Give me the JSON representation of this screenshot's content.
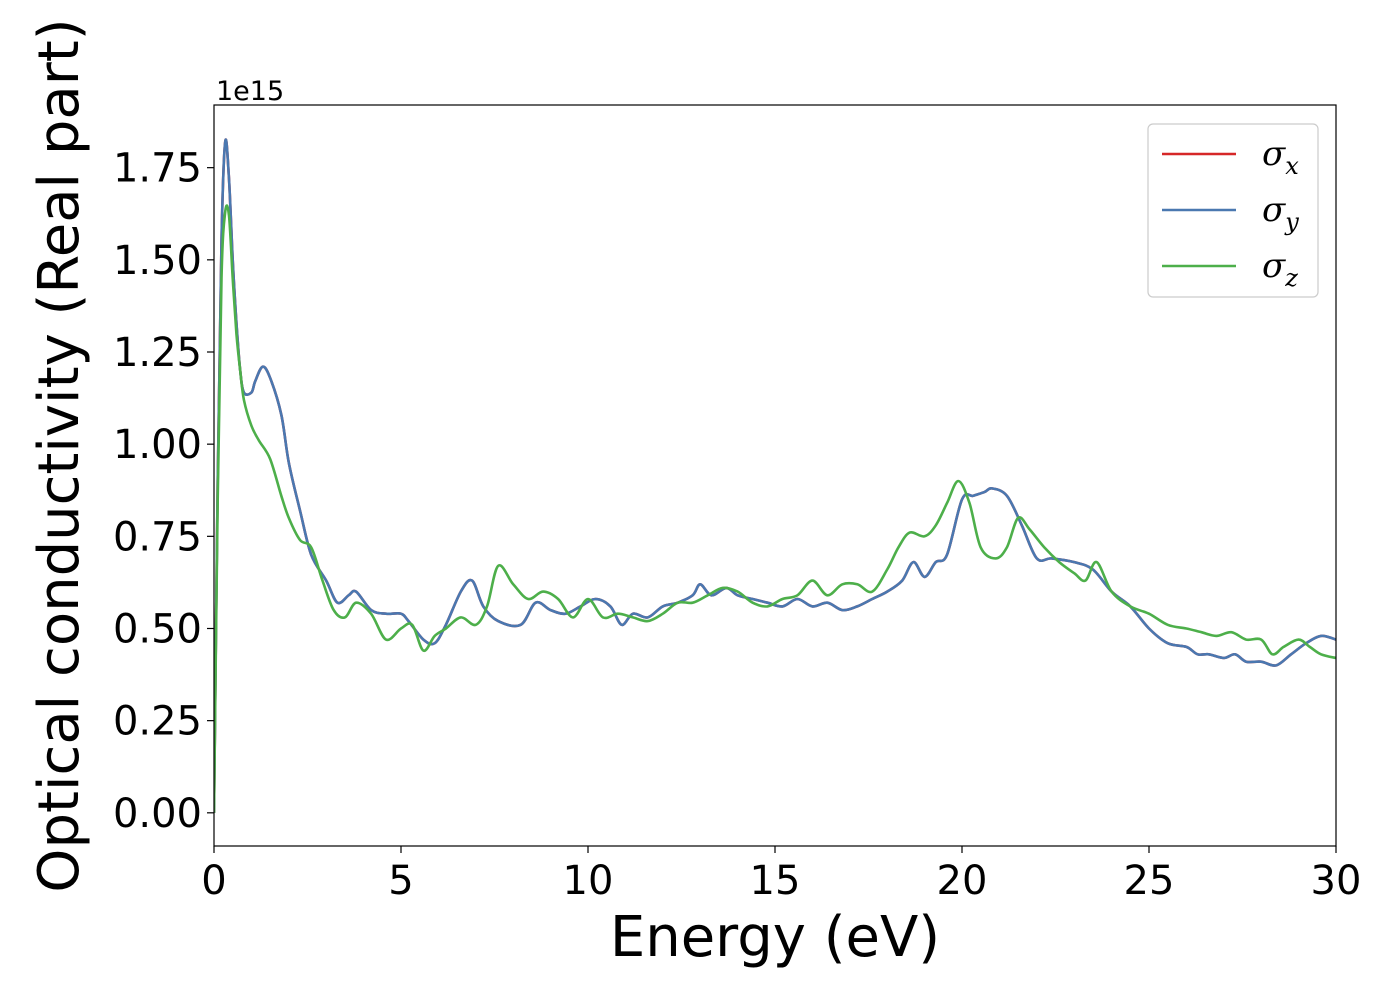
{
  "chart_data": {
    "type": "line",
    "xlabel": "Energy (eV)",
    "ylabel": "Optical conductivity (Real part)",
    "y_offset_label": "1e15",
    "y_scale_factor": 1000000000000000.0,
    "xlim": [
      0,
      30
    ],
    "ylim": [
      -0.09,
      1.92
    ],
    "x_ticks": [
      0,
      5,
      10,
      15,
      20,
      25,
      30
    ],
    "x_tick_labels": [
      "0",
      "5",
      "10",
      "15",
      "20",
      "25",
      "30"
    ],
    "y_ticks": [
      0.0,
      0.25,
      0.5,
      0.75,
      1.0,
      1.25,
      1.5,
      1.75
    ],
    "y_tick_labels": [
      "0.00",
      "0.25",
      "0.50",
      "0.75",
      "1.00",
      "1.25",
      "1.50",
      "1.75"
    ],
    "grid": false,
    "legend_position": "top-right",
    "series": [
      {
        "name": "σx",
        "symbol": "σ",
        "subscript": "x",
        "color": "#d62728",
        "x": [
          0,
          0.1,
          0.2,
          0.3,
          0.4,
          0.5,
          0.6,
          0.7,
          0.8,
          1.0,
          1.1,
          1.3,
          1.5,
          1.8,
          2.0,
          2.3,
          2.6,
          3.0,
          3.3,
          3.6,
          3.8,
          4.2,
          4.6,
          5.0,
          5.2,
          5.6,
          5.9,
          6.2,
          6.6,
          6.9,
          7.2,
          7.6,
          8.2,
          8.6,
          9.0,
          9.4,
          9.8,
          10.2,
          10.6,
          10.9,
          11.2,
          11.6,
          12.0,
          12.4,
          12.8,
          13.0,
          13.3,
          13.7,
          14.0,
          14.4,
          14.8,
          15.2,
          15.6,
          16.0,
          16.4,
          16.8,
          17.2,
          17.6,
          18.0,
          18.4,
          18.7,
          19.0,
          19.3,
          19.6,
          20.0,
          20.3,
          20.6,
          20.8,
          21.2,
          21.6,
          22.0,
          22.4,
          23.0,
          23.5,
          24.0,
          24.5,
          25.0,
          25.5,
          26.0,
          26.3,
          26.6,
          27.0,
          27.3,
          27.6,
          28.0,
          28.4,
          28.8,
          29.2,
          29.6,
          30.0
        ],
        "y": [
          0.0,
          0.9,
          1.55,
          1.82,
          1.72,
          1.5,
          1.33,
          1.2,
          1.14,
          1.14,
          1.17,
          1.21,
          1.18,
          1.08,
          0.95,
          0.82,
          0.7,
          0.63,
          0.57,
          0.59,
          0.6,
          0.55,
          0.54,
          0.54,
          0.52,
          0.47,
          0.46,
          0.51,
          0.6,
          0.63,
          0.56,
          0.52,
          0.51,
          0.57,
          0.55,
          0.54,
          0.56,
          0.58,
          0.56,
          0.51,
          0.54,
          0.53,
          0.56,
          0.57,
          0.59,
          0.62,
          0.59,
          0.61,
          0.59,
          0.58,
          0.57,
          0.56,
          0.58,
          0.56,
          0.57,
          0.55,
          0.56,
          0.58,
          0.6,
          0.63,
          0.68,
          0.64,
          0.68,
          0.7,
          0.85,
          0.86,
          0.87,
          0.88,
          0.86,
          0.78,
          0.69,
          0.69,
          0.68,
          0.66,
          0.6,
          0.56,
          0.5,
          0.46,
          0.45,
          0.43,
          0.43,
          0.42,
          0.43,
          0.41,
          0.41,
          0.4,
          0.43,
          0.46,
          0.48,
          0.47
        ]
      },
      {
        "name": "σy",
        "symbol": "σ",
        "subscript": "y",
        "color": "#4a78b0",
        "x": [
          0,
          0.1,
          0.2,
          0.3,
          0.4,
          0.5,
          0.6,
          0.7,
          0.8,
          1.0,
          1.1,
          1.3,
          1.5,
          1.8,
          2.0,
          2.3,
          2.6,
          3.0,
          3.3,
          3.6,
          3.8,
          4.2,
          4.6,
          5.0,
          5.2,
          5.6,
          5.9,
          6.2,
          6.6,
          6.9,
          7.2,
          7.6,
          8.2,
          8.6,
          9.0,
          9.4,
          9.8,
          10.2,
          10.6,
          10.9,
          11.2,
          11.6,
          12.0,
          12.4,
          12.8,
          13.0,
          13.3,
          13.7,
          14.0,
          14.4,
          14.8,
          15.2,
          15.6,
          16.0,
          16.4,
          16.8,
          17.2,
          17.6,
          18.0,
          18.4,
          18.7,
          19.0,
          19.3,
          19.6,
          20.0,
          20.3,
          20.6,
          20.8,
          21.2,
          21.6,
          22.0,
          22.4,
          23.0,
          23.5,
          24.0,
          24.5,
          25.0,
          25.5,
          26.0,
          26.3,
          26.6,
          27.0,
          27.3,
          27.6,
          28.0,
          28.4,
          28.8,
          29.2,
          29.6,
          30.0
        ],
        "y": [
          0.0,
          0.9,
          1.55,
          1.82,
          1.72,
          1.5,
          1.33,
          1.2,
          1.14,
          1.14,
          1.17,
          1.21,
          1.18,
          1.08,
          0.95,
          0.82,
          0.7,
          0.63,
          0.57,
          0.59,
          0.6,
          0.55,
          0.54,
          0.54,
          0.52,
          0.47,
          0.46,
          0.51,
          0.6,
          0.63,
          0.56,
          0.52,
          0.51,
          0.57,
          0.55,
          0.54,
          0.56,
          0.58,
          0.56,
          0.51,
          0.54,
          0.53,
          0.56,
          0.57,
          0.59,
          0.62,
          0.59,
          0.61,
          0.59,
          0.58,
          0.57,
          0.56,
          0.58,
          0.56,
          0.57,
          0.55,
          0.56,
          0.58,
          0.6,
          0.63,
          0.68,
          0.64,
          0.68,
          0.7,
          0.85,
          0.86,
          0.87,
          0.88,
          0.86,
          0.78,
          0.69,
          0.69,
          0.68,
          0.66,
          0.6,
          0.56,
          0.5,
          0.46,
          0.45,
          0.43,
          0.43,
          0.42,
          0.43,
          0.41,
          0.41,
          0.4,
          0.43,
          0.46,
          0.48,
          0.47
        ]
      },
      {
        "name": "σz",
        "symbol": "σ",
        "subscript": "z",
        "color": "#4daf4a",
        "x": [
          0,
          0.1,
          0.2,
          0.3,
          0.4,
          0.5,
          0.6,
          0.7,
          0.8,
          1.0,
          1.2,
          1.5,
          1.8,
          2.0,
          2.3,
          2.6,
          2.9,
          3.2,
          3.5,
          3.8,
          4.2,
          4.6,
          5.0,
          5.3,
          5.6,
          5.9,
          6.2,
          6.6,
          7.0,
          7.3,
          7.6,
          8.0,
          8.4,
          8.8,
          9.2,
          9.6,
          10.0,
          10.4,
          10.8,
          11.2,
          11.6,
          12.0,
          12.4,
          12.8,
          13.2,
          13.6,
          14.0,
          14.4,
          14.8,
          15.2,
          15.6,
          16.0,
          16.4,
          16.8,
          17.2,
          17.6,
          18.0,
          18.3,
          18.6,
          19.0,
          19.3,
          19.6,
          19.9,
          20.2,
          20.5,
          20.9,
          21.2,
          21.5,
          21.8,
          22.2,
          22.6,
          23.0,
          23.3,
          23.6,
          24.0,
          24.5,
          25.0,
          25.5,
          26.0,
          26.4,
          26.8,
          27.2,
          27.6,
          28.0,
          28.3,
          28.6,
          29.0,
          29.3,
          29.6,
          30.0
        ],
        "y": [
          0.0,
          0.85,
          1.45,
          1.63,
          1.62,
          1.45,
          1.3,
          1.2,
          1.12,
          1.05,
          1.01,
          0.96,
          0.86,
          0.8,
          0.74,
          0.72,
          0.63,
          0.55,
          0.53,
          0.57,
          0.54,
          0.47,
          0.5,
          0.51,
          0.44,
          0.48,
          0.5,
          0.53,
          0.51,
          0.56,
          0.67,
          0.62,
          0.58,
          0.6,
          0.58,
          0.53,
          0.58,
          0.53,
          0.54,
          0.53,
          0.52,
          0.54,
          0.57,
          0.57,
          0.59,
          0.61,
          0.6,
          0.57,
          0.56,
          0.58,
          0.59,
          0.63,
          0.59,
          0.62,
          0.62,
          0.6,
          0.66,
          0.72,
          0.76,
          0.75,
          0.78,
          0.84,
          0.9,
          0.84,
          0.72,
          0.69,
          0.72,
          0.8,
          0.77,
          0.72,
          0.68,
          0.65,
          0.63,
          0.68,
          0.6,
          0.56,
          0.54,
          0.51,
          0.5,
          0.49,
          0.48,
          0.49,
          0.47,
          0.47,
          0.43,
          0.45,
          0.47,
          0.45,
          0.43,
          0.42
        ]
      }
    ]
  }
}
